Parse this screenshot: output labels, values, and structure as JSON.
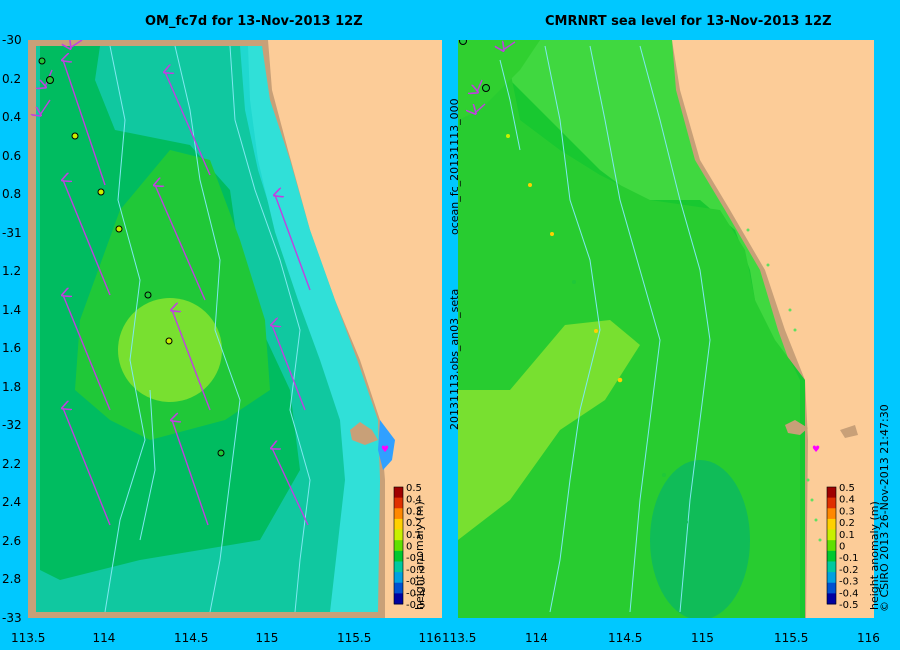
{
  "left_panel": {
    "title": "OM_fc7d for 13-Nov-2013 12Z"
  },
  "right_panel": {
    "title": "CMRNRT sea level  for 13-Nov-2013 12Z"
  },
  "y_axis_labels": [
    "-30",
    "0.2",
    "0.4",
    "0.6",
    "0.8",
    "-31",
    "1.2",
    "1.4",
    "1.6",
    "1.8",
    "-32",
    "2.2",
    "2.4",
    "2.6",
    "2.8",
    "-33"
  ],
  "x_axis_labels_left": [
    "113.5",
    "114",
    "114.5",
    "115",
    "115.5",
    "116"
  ],
  "x_axis_labels_right": [
    "113.5",
    "114",
    "114.5",
    "115",
    "115.5",
    "116"
  ],
  "right_side_labels": {
    "forecast_file": "ocean_fc_20131113_000",
    "obs_file": "20131113.obs_an03_seta"
  },
  "colorbar": {
    "ticks": [
      "0.5",
      "0.4",
      "0.3",
      "0.2",
      "0.1",
      "0",
      "-0.1",
      "-0.2",
      "-0.3",
      "-0.4",
      "-0.5"
    ],
    "label": "height anomaly (m)",
    "colors": [
      "#a00000",
      "#e03000",
      "#ff8800",
      "#ffd000",
      "#c8f000",
      "#60e000",
      "#00c830",
      "#00c8a0",
      "#00a0e0",
      "#0050d0",
      "#0000a0"
    ]
  },
  "credit": "© CSIRO 2013  26-Nov-2013 21:47:30",
  "colors": {
    "background": "#00c8ff",
    "land": "#fccc98",
    "shelf": "#c8a078",
    "arrows": "#c040e0"
  }
}
